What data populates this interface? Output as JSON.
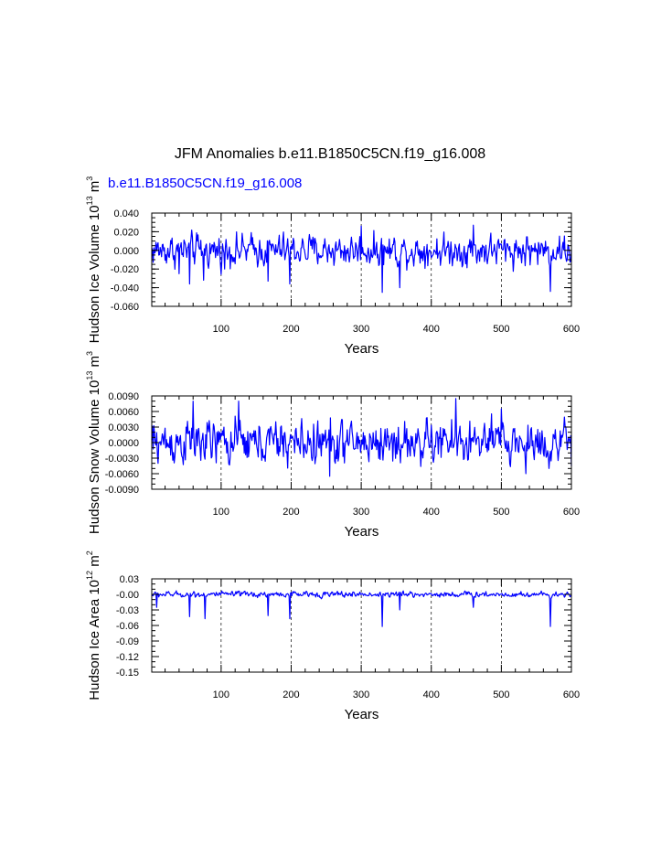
{
  "figure": {
    "title": "JFM Anomalies b.e11.B1850C5CN.f19_g16.008",
    "subtitle": "b.e11.B1850C5CN.f19_g16.008",
    "series_color": "#0000ff"
  },
  "chart_data": [
    {
      "type": "line",
      "ylabel_main": "Hudson Ice Volume 10",
      "ylabel_exp": "13",
      "ylabel_unit": " m",
      "ylabel_unit_exp": "3",
      "xlabel": "Years",
      "xlim": [
        1,
        600
      ],
      "ylim": [
        -0.06,
        0.04
      ],
      "x_ticks": [
        100,
        200,
        300,
        400,
        500,
        600
      ],
      "x_tick_labels": [
        "100",
        "200",
        "300",
        "400",
        "500",
        "600"
      ],
      "y_ticks": [
        -0.06,
        -0.04,
        -0.02,
        0.0,
        0.02,
        0.04
      ],
      "y_tick_labels": [
        "-0.060",
        "-0.040",
        "-0.020",
        "0.000",
        "0.020",
        "0.040"
      ],
      "y_minor_step": 0.005,
      "grid": "vertical dashed at major x ticks",
      "series": {
        "amplitude": 0.012,
        "range": [
          -0.045,
          0.028
        ],
        "spikes": [
          {
            "x": 40,
            "y": -0.025
          },
          {
            "x": 55,
            "y": -0.036
          },
          {
            "x": 75,
            "y": -0.032
          },
          {
            "x": 105,
            "y": -0.02
          },
          {
            "x": 167,
            "y": -0.033
          },
          {
            "x": 198,
            "y": -0.036
          },
          {
            "x": 300,
            "y": 0.026
          },
          {
            "x": 330,
            "y": -0.045
          },
          {
            "x": 355,
            "y": -0.04
          },
          {
            "x": 460,
            "y": 0.027
          },
          {
            "x": 570,
            "y": -0.044
          }
        ]
      }
    },
    {
      "type": "line",
      "ylabel_main": "Hudson Snow Volume 10",
      "ylabel_exp": "13",
      "ylabel_unit": " m",
      "ylabel_unit_exp": "3",
      "xlabel": "Years",
      "xlim": [
        1,
        600
      ],
      "ylim": [
        -0.009,
        0.009
      ],
      "x_ticks": [
        100,
        200,
        300,
        400,
        500,
        600
      ],
      "x_tick_labels": [
        "100",
        "200",
        "300",
        "400",
        "500",
        "600"
      ],
      "y_ticks": [
        -0.009,
        -0.006,
        -0.003,
        0.0,
        0.003,
        0.006,
        0.009
      ],
      "y_tick_labels": [
        "-0.0090",
        "-0.0060",
        "-0.0030",
        "0.0000",
        "0.0030",
        "0.0060",
        "0.0090"
      ],
      "y_minor_step": 0.001,
      "grid": "vertical dashed at major x ticks",
      "series": {
        "amplitude": 0.003,
        "range": [
          -0.0065,
          0.0085
        ],
        "spikes": [
          {
            "x": 60,
            "y": 0.008
          },
          {
            "x": 125,
            "y": 0.008
          },
          {
            "x": 255,
            "y": -0.0065
          },
          {
            "x": 435,
            "y": 0.0085
          },
          {
            "x": 500,
            "y": 0.0065
          },
          {
            "x": 535,
            "y": -0.006
          },
          {
            "x": 568,
            "y": -0.005
          },
          {
            "x": 600,
            "y": -0.0045
          }
        ]
      }
    },
    {
      "type": "line",
      "ylabel_main": "Hudson Ice Area 10",
      "ylabel_exp": "12",
      "ylabel_unit": " m",
      "ylabel_unit_exp": "2",
      "xlabel": "Years",
      "xlim": [
        1,
        600
      ],
      "ylim": [
        -0.15,
        0.03
      ],
      "x_ticks": [
        100,
        200,
        300,
        400,
        500,
        600
      ],
      "x_tick_labels": [
        "100",
        "200",
        "300",
        "400",
        "500",
        "600"
      ],
      "y_ticks": [
        -0.15,
        -0.12,
        -0.09,
        -0.06,
        -0.03,
        0.0,
        0.03
      ],
      "y_tick_labels": [
        "-0.15",
        "-0.12",
        "-0.09",
        "-0.06",
        "-0.03",
        "-0.00",
        "0.03"
      ],
      "y_minor_step": 0.01,
      "grid": "vertical dashed at major x ticks",
      "series": {
        "amplitude": 0.004,
        "range": [
          -0.062,
          0.008
        ],
        "spikes": [
          {
            "x": 8,
            "y": -0.025
          },
          {
            "x": 55,
            "y": -0.043
          },
          {
            "x": 77,
            "y": -0.047
          },
          {
            "x": 167,
            "y": -0.041
          },
          {
            "x": 198,
            "y": -0.047
          },
          {
            "x": 330,
            "y": -0.062
          },
          {
            "x": 355,
            "y": -0.03
          },
          {
            "x": 460,
            "y": -0.025
          },
          {
            "x": 570,
            "y": -0.062
          }
        ]
      }
    }
  ]
}
